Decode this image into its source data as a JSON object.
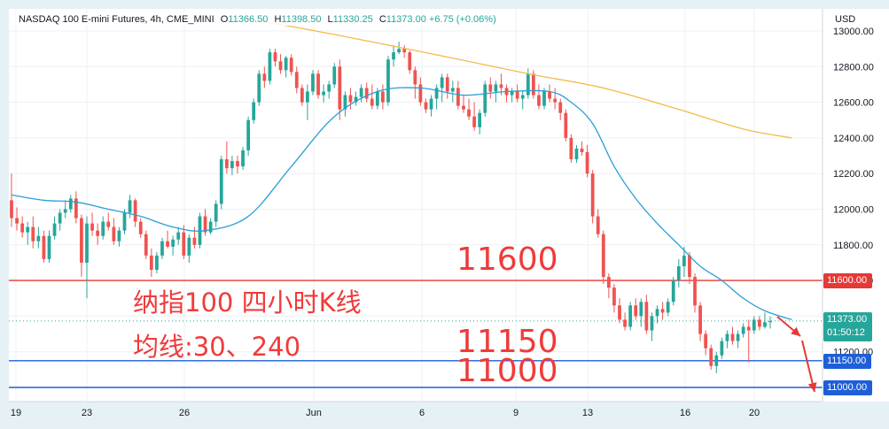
{
  "header": {
    "symbol": "NASDAQ 100 E-mini Futures, 4h, CME_MINI",
    "open_label": "O",
    "open": "11366.50",
    "high_label": "H",
    "high": "11398.50",
    "low_label": "L",
    "low": "11330.25",
    "close_label": "C",
    "close": "11373.00",
    "change": "+6.75 (+0.06%)"
  },
  "currency": "USD",
  "annotations": {
    "title": "纳指100 四小时K线",
    "ma_note": "均线:30、240",
    "level_11600": "11600",
    "level_11150": "11150",
    "level_11000": "11000"
  },
  "price_tags": {
    "current": "11373.00",
    "countdown": "01:50:12",
    "tag_11600": "11600.00",
    "tag_11150": "11150.00",
    "tag_11000": "11000.00"
  },
  "colors": {
    "up": "#26a69a",
    "down": "#ef5350",
    "ma30": "#2a9fd6",
    "ma240": "#f5b94a",
    "red_line": "#e53935",
    "blue_line": "#1e5fd8",
    "annotation": "#ef3b3b"
  },
  "chart_data": {
    "type": "candlestick",
    "instrument": "NASDAQ 100 E-mini Futures",
    "interval": "4h",
    "y_axis": {
      "ticks": [
        11000,
        11200,
        11400,
        11600,
        11800,
        12000,
        12200,
        12400,
        12600,
        12800,
        13000
      ],
      "ylim": [
        10965,
        13030
      ]
    },
    "x_axis": {
      "labels": [
        "19",
        "23",
        "26",
        "Jun",
        "6",
        "9",
        "13",
        "16",
        "20"
      ]
    },
    "horizontal_lines": [
      {
        "price": 11600,
        "color": "red"
      },
      {
        "price": 11150,
        "color": "blue"
      },
      {
        "price": 11000,
        "color": "blue"
      }
    ],
    "last_price": 11373.0,
    "series": [
      {
        "name": "candles",
        "ohlc": [
          [
            12050,
            12200,
            11900,
            11950
          ],
          [
            11950,
            12010,
            11880,
            11920
          ],
          [
            11920,
            11960,
            11840,
            11870
          ],
          [
            11870,
            11930,
            11800,
            11900
          ],
          [
            11900,
            11960,
            11780,
            11820
          ],
          [
            11820,
            11900,
            11780,
            11850
          ],
          [
            11850,
            11880,
            11700,
            11720
          ],
          [
            11720,
            11880,
            11700,
            11850
          ],
          [
            11850,
            11960,
            11830,
            11920
          ],
          [
            11920,
            12000,
            11880,
            11980
          ],
          [
            11980,
            12050,
            11950,
            12000
          ],
          [
            12000,
            12080,
            11980,
            12060
          ],
          [
            12060,
            12100,
            11920,
            11950
          ],
          [
            11950,
            11970,
            11620,
            11700
          ],
          [
            11700,
            11960,
            11500,
            11920
          ],
          [
            11920,
            11980,
            11850,
            11880
          ],
          [
            11880,
            11920,
            11800,
            11850
          ],
          [
            11850,
            11960,
            11830,
            11930
          ],
          [
            11930,
            11980,
            11880,
            11900
          ],
          [
            11900,
            11950,
            11800,
            11820
          ],
          [
            11820,
            11900,
            11790,
            11880
          ],
          [
            11880,
            12000,
            11860,
            11980
          ],
          [
            11980,
            12080,
            11950,
            12050
          ],
          [
            12050,
            12060,
            11900,
            11930
          ],
          [
            11930,
            11950,
            11840,
            11860
          ],
          [
            11860,
            11880,
            11720,
            11740
          ],
          [
            11740,
            11780,
            11620,
            11660
          ],
          [
            11660,
            11760,
            11640,
            11740
          ],
          [
            11740,
            11840,
            11720,
            11820
          ],
          [
            11820,
            11880,
            11780,
            11790
          ],
          [
            11790,
            11850,
            11740,
            11830
          ],
          [
            11830,
            11900,
            11800,
            11870
          ],
          [
            11870,
            11910,
            11720,
            11740
          ],
          [
            11740,
            11860,
            11700,
            11840
          ],
          [
            11840,
            11900,
            11780,
            11800
          ],
          [
            11800,
            11980,
            11780,
            11960
          ],
          [
            11960,
            12000,
            11850,
            11870
          ],
          [
            11870,
            11950,
            11860,
            11930
          ],
          [
            11930,
            12050,
            11900,
            12030
          ],
          [
            12030,
            12300,
            12000,
            12280
          ],
          [
            12280,
            12380,
            12200,
            12230
          ],
          [
            12230,
            12300,
            12190,
            12270
          ],
          [
            12270,
            12300,
            12200,
            12240
          ],
          [
            12240,
            12350,
            12220,
            12330
          ],
          [
            12330,
            12520,
            12300,
            12500
          ],
          [
            12500,
            12620,
            12480,
            12600
          ],
          [
            12600,
            12780,
            12580,
            12760
          ],
          [
            12760,
            12800,
            12680,
            12720
          ],
          [
            12720,
            12900,
            12700,
            12880
          ],
          [
            12880,
            12900,
            12800,
            12830
          ],
          [
            12830,
            12870,
            12760,
            12780
          ],
          [
            12780,
            12860,
            12740,
            12850
          ],
          [
            12850,
            12870,
            12750,
            12770
          ],
          [
            12770,
            12800,
            12650,
            12680
          ],
          [
            12680,
            12700,
            12580,
            12600
          ],
          [
            12600,
            12700,
            12500,
            12660
          ],
          [
            12660,
            12780,
            12640,
            12760
          ],
          [
            12760,
            12780,
            12620,
            12640
          ],
          [
            12640,
            12700,
            12600,
            12660
          ],
          [
            12660,
            12720,
            12620,
            12700
          ],
          [
            12700,
            12820,
            12680,
            12800
          ],
          [
            12800,
            12840,
            12500,
            12560
          ],
          [
            12560,
            12660,
            12520,
            12640
          ],
          [
            12640,
            12680,
            12560,
            12600
          ],
          [
            12600,
            12660,
            12580,
            12630
          ],
          [
            12630,
            12700,
            12600,
            12680
          ],
          [
            12680,
            12710,
            12600,
            12620
          ],
          [
            12620,
            12700,
            12560,
            12580
          ],
          [
            12580,
            12680,
            12560,
            12660
          ],
          [
            12660,
            12700,
            12560,
            12600
          ],
          [
            12600,
            12860,
            12580,
            12840
          ],
          [
            12840,
            12920,
            12800,
            12880
          ],
          [
            12880,
            12940,
            12870,
            12900
          ],
          [
            12900,
            12920,
            12850,
            12880
          ],
          [
            12880,
            12890,
            12760,
            12780
          ],
          [
            12780,
            12800,
            12620,
            12700
          ],
          [
            12700,
            12740,
            12580,
            12600
          ],
          [
            12600,
            12620,
            12540,
            12560
          ],
          [
            12560,
            12640,
            12520,
            12620
          ],
          [
            12620,
            12700,
            12560,
            12680
          ],
          [
            12680,
            12760,
            12600,
            12740
          ],
          [
            12740,
            12760,
            12620,
            12660
          ],
          [
            12660,
            12720,
            12600,
            12680
          ],
          [
            12680,
            12720,
            12560,
            12580
          ],
          [
            12580,
            12640,
            12540,
            12560
          ],
          [
            12560,
            12620,
            12500,
            12520
          ],
          [
            12520,
            12600,
            12440,
            12460
          ],
          [
            12460,
            12560,
            12420,
            12540
          ],
          [
            12540,
            12720,
            12520,
            12700
          ],
          [
            12700,
            12740,
            12620,
            12660
          ],
          [
            12660,
            12720,
            12600,
            12700
          ],
          [
            12700,
            12760,
            12640,
            12680
          ],
          [
            12680,
            12700,
            12600,
            12640
          ],
          [
            12640,
            12680,
            12600,
            12660
          ],
          [
            12660,
            12700,
            12600,
            12620
          ],
          [
            12620,
            12660,
            12560,
            12640
          ],
          [
            12640,
            12790,
            12620,
            12760
          ],
          [
            12760,
            12780,
            12620,
            12640
          ],
          [
            12640,
            12700,
            12560,
            12580
          ],
          [
            12580,
            12680,
            12560,
            12660
          ],
          [
            12660,
            12700,
            12600,
            12620
          ],
          [
            12620,
            12680,
            12560,
            12600
          ],
          [
            12600,
            12620,
            12500,
            12540
          ],
          [
            12540,
            12560,
            12380,
            12400
          ],
          [
            12400,
            12420,
            12260,
            12280
          ],
          [
            12280,
            12360,
            12260,
            12340
          ],
          [
            12340,
            12380,
            12300,
            12320
          ],
          [
            12320,
            12360,
            12180,
            12200
          ],
          [
            12200,
            12220,
            11920,
            11960
          ],
          [
            11960,
            12000,
            11840,
            11860
          ],
          [
            11860,
            11880,
            11580,
            11620
          ],
          [
            11620,
            11640,
            11500,
            11560
          ],
          [
            11560,
            11580,
            11420,
            11460
          ],
          [
            11460,
            11500,
            11360,
            11380
          ],
          [
            11380,
            11420,
            11320,
            11340
          ],
          [
            11340,
            11480,
            11320,
            11460
          ],
          [
            11460,
            11500,
            11380,
            11400
          ],
          [
            11400,
            11500,
            11340,
            11480
          ],
          [
            11480,
            11520,
            11300,
            11320
          ],
          [
            11320,
            11420,
            11260,
            11400
          ],
          [
            11400,
            11460,
            11360,
            11440
          ],
          [
            11440,
            11480,
            11380,
            11420
          ],
          [
            11420,
            11500,
            11400,
            11480
          ],
          [
            11480,
            11620,
            11460,
            11600
          ],
          [
            11600,
            11720,
            11560,
            11680
          ],
          [
            11680,
            11790,
            11620,
            11740
          ],
          [
            11740,
            11760,
            11580,
            11620
          ],
          [
            11620,
            11640,
            11420,
            11460
          ],
          [
            11460,
            11480,
            11260,
            11300
          ],
          [
            11300,
            11320,
            11180,
            11220
          ],
          [
            11220,
            11240,
            11100,
            11120
          ],
          [
            11120,
            11200,
            11080,
            11180
          ],
          [
            11180,
            11280,
            11160,
            11260
          ],
          [
            11260,
            11320,
            11220,
            11300
          ],
          [
            11300,
            11340,
            11240,
            11260
          ],
          [
            11260,
            11320,
            11220,
            11300
          ],
          [
            11300,
            11360,
            11280,
            11340
          ],
          [
            11340,
            11380,
            11140,
            11320
          ],
          [
            11320,
            11400,
            11300,
            11380
          ],
          [
            11380,
            11400,
            11320,
            11340
          ],
          [
            11340,
            11420,
            11330,
            11366
          ],
          [
            11366,
            11398,
            11330,
            11373
          ]
        ]
      },
      {
        "name": "MA30",
        "values": [
          [
            0,
            12080
          ],
          [
            6,
            12050
          ],
          [
            12,
            12040
          ],
          [
            18,
            12000
          ],
          [
            24,
            11960
          ],
          [
            30,
            11900
          ],
          [
            36,
            11880
          ],
          [
            44,
            11960
          ],
          [
            52,
            12240
          ],
          [
            60,
            12520
          ],
          [
            68,
            12660
          ],
          [
            76,
            12680
          ],
          [
            84,
            12640
          ],
          [
            92,
            12660
          ],
          [
            100,
            12660
          ],
          [
            104,
            12600
          ],
          [
            108,
            12480
          ],
          [
            112,
            12240
          ],
          [
            116,
            12060
          ],
          [
            120,
            11920
          ],
          [
            124,
            11800
          ],
          [
            128,
            11680
          ],
          [
            132,
            11600
          ],
          [
            136,
            11500
          ],
          [
            140,
            11430
          ],
          [
            145,
            11380
          ]
        ]
      },
      {
        "name": "MA240",
        "values": [
          [
            42,
            13080
          ],
          [
            60,
            12980
          ],
          [
            80,
            12860
          ],
          [
            96,
            12760
          ],
          [
            110,
            12680
          ],
          [
            124,
            12560
          ],
          [
            136,
            12450
          ],
          [
            145,
            12400
          ]
        ]
      }
    ]
  }
}
